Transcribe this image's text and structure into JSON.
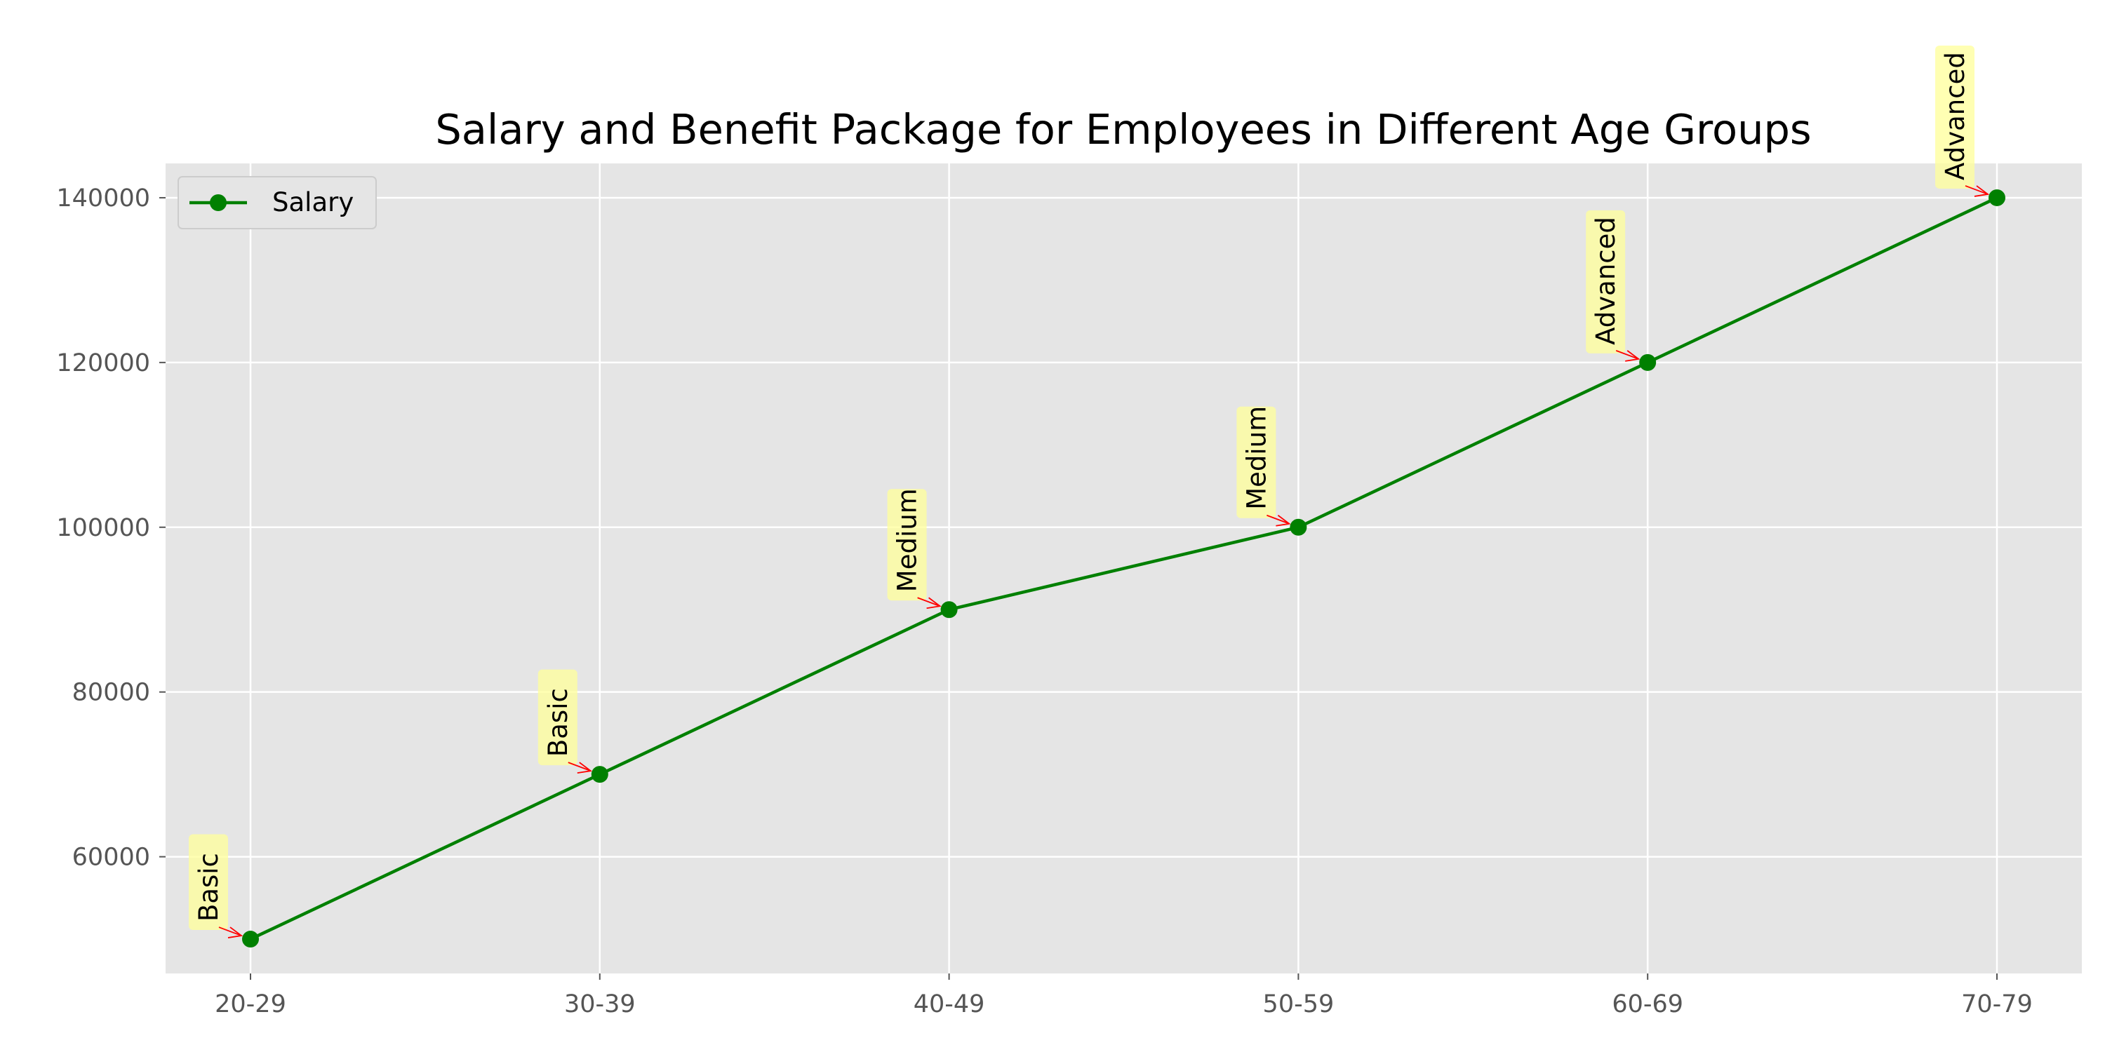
{
  "chart_data": {
    "type": "line",
    "title": "Salary and Benefit Package for Employees in Different Age Groups",
    "xlabel": "",
    "ylabel": "",
    "categories": [
      "20-29",
      "30-39",
      "40-49",
      "50-59",
      "60-69",
      "70-79"
    ],
    "series": [
      {
        "name": "Salary",
        "values": [
          50000,
          70000,
          90000,
          100000,
          120000,
          140000
        ],
        "color": "#008000",
        "marker": "circle"
      }
    ],
    "annotations": [
      "Basic",
      "Basic",
      "Medium",
      "Medium",
      "Advanced",
      "Advanced"
    ],
    "annotation_box_color": "#ffff99",
    "arrow_color": "#ff0000",
    "ylim": [
      45833,
      144167
    ],
    "yticks": [
      60000,
      80000,
      100000,
      120000,
      140000
    ],
    "grid": true,
    "legend": "upper left",
    "background": "#e5e5e5"
  }
}
